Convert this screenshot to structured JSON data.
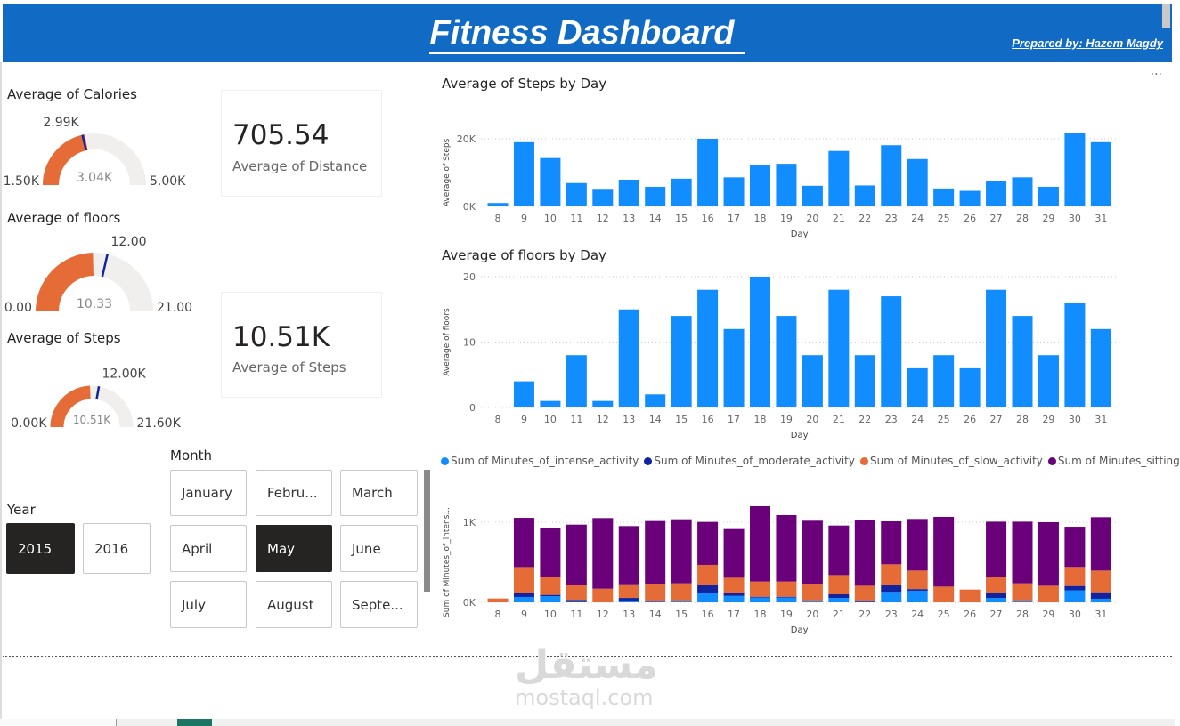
{
  "header": {
    "title": "Fitness Dashboard",
    "author": "Prepared by: Hazem Magdy",
    "bg_color": "#116ac4"
  },
  "gauges": [
    {
      "title": "Average of Calories",
      "min": 1.5,
      "max": 5.0,
      "value": 3.04,
      "target": 2.99,
      "min_label": "1.50K",
      "max_label": "5.00K",
      "value_label": "3.04K",
      "target_label": "2.99K"
    },
    {
      "title": "Average of floors",
      "min": 0,
      "max": 21,
      "value": 10.33,
      "target": 12,
      "min_label": "0.00",
      "max_label": "21.00",
      "value_label": "10.33",
      "target_label": "12.00"
    },
    {
      "title": "Average of Steps",
      "min": 0,
      "max": 21.6,
      "value": 10.51,
      "target": 12,
      "min_label": "0.00K",
      "max_label": "21.60K",
      "value_label": "10.51K",
      "target_label": "12.00K"
    }
  ],
  "gauge_colors": {
    "fill": "#e66c37",
    "track": "#f0efee",
    "target": "#12239e"
  },
  "cards": [
    {
      "value": "705.54",
      "caption": "Average of Distance"
    },
    {
      "value": "10.51K",
      "caption": "Average of Steps"
    }
  ],
  "year_slicer": {
    "title": "Year",
    "options": [
      "2015",
      "2016"
    ],
    "selected": "2015"
  },
  "month_slicer": {
    "title": "Month",
    "options": [
      "January",
      "Febru...",
      "March",
      "April",
      "May",
      "June",
      "July",
      "August",
      "Septe..."
    ],
    "selected": "May"
  },
  "more_options": "...",
  "watermark": {
    "arabic": "مستقل",
    "latin": "mostaql.com"
  },
  "chart_data": [
    {
      "type": "bar",
      "title": "Average of Steps by Day",
      "xlabel": "Day",
      "ylabel": "Average of Steps",
      "color": "#118dff",
      "categories": [
        "8",
        "9",
        "10",
        "11",
        "12",
        "13",
        "14",
        "15",
        "16",
        "17",
        "18",
        "19",
        "20",
        "21",
        "22",
        "23",
        "24",
        "25",
        "26",
        "27",
        "28",
        "29",
        "30",
        "31"
      ],
      "values": [
        1000,
        19000,
        14300,
        6900,
        5200,
        7900,
        5800,
        8200,
        20000,
        8600,
        12100,
        12600,
        6100,
        16400,
        6200,
        18100,
        14000,
        5300,
        4600,
        7600,
        8600,
        5800,
        21600,
        19000
      ],
      "yticks": [
        {
          "v": 0,
          "label": "0K"
        },
        {
          "v": 20000,
          "label": "20K"
        }
      ],
      "ylim": [
        0,
        22000
      ],
      "grid": true
    },
    {
      "type": "bar",
      "title": "Average of floors by Day",
      "xlabel": "Day",
      "ylabel": "Average of floors",
      "color": "#118dff",
      "categories": [
        "8",
        "9",
        "10",
        "11",
        "12",
        "13",
        "14",
        "15",
        "16",
        "17",
        "18",
        "19",
        "20",
        "21",
        "22",
        "23",
        "24",
        "25",
        "26",
        "27",
        "28",
        "29",
        "30",
        "31"
      ],
      "values": [
        0,
        4,
        1,
        8,
        1,
        15,
        2,
        14,
        18,
        12,
        20,
        14,
        8,
        18,
        8,
        17,
        6,
        8,
        6,
        18,
        14,
        8,
        16,
        12
      ],
      "yticks": [
        {
          "v": 0,
          "label": "0"
        },
        {
          "v": 10,
          "label": "10"
        },
        {
          "v": 20,
          "label": "20"
        }
      ],
      "ylim": [
        0,
        20
      ],
      "grid": true
    },
    {
      "type": "bar",
      "stacked": true,
      "title": "",
      "xlabel": "Day",
      "ylabel": "Sum of Minutes_of_intens...",
      "categories": [
        "8",
        "9",
        "10",
        "11",
        "12",
        "13",
        "14",
        "15",
        "16",
        "17",
        "18",
        "19",
        "20",
        "21",
        "22",
        "23",
        "24",
        "25",
        "26",
        "27",
        "28",
        "29",
        "30",
        "31"
      ],
      "series": [
        {
          "name": "Sum of Minutes_of_intense_activity",
          "color": "#118dff",
          "values": [
            0,
            67,
            78,
            5,
            0,
            15,
            5,
            10,
            119,
            80,
            60,
            60,
            10,
            55,
            5,
            130,
            145,
            0,
            0,
            55,
            10,
            0,
            150,
            45
          ]
        },
        {
          "name": "Sum of Minutes_of_moderate_activity",
          "color": "#12239e",
          "values": [
            0,
            55,
            15,
            25,
            0,
            40,
            5,
            5,
            100,
            35,
            10,
            10,
            10,
            45,
            10,
            81,
            20,
            0,
            0,
            60,
            10,
            0,
            54,
            81
          ]
        },
        {
          "name": "Sum of Minutes_of_slow_activity",
          "color": "#e66c37",
          "values": [
            48,
            318,
            225,
            188,
            170,
            170,
            223,
            222,
            248,
            192,
            189,
            189,
            213,
            240,
            192,
            263,
            231,
            196,
            159,
            196,
            217,
            207,
            237,
            270
          ]
        },
        {
          "name": "Sum of Minutes_sitting",
          "color": "#6b007b",
          "values": [
            0,
            615,
            604,
            752,
            882,
            727,
            782,
            800,
            537,
            608,
            941,
            830,
            786,
            619,
            826,
            537,
            645,
            871,
            0,
            696,
            770,
            793,
            503,
            667
          ]
        }
      ],
      "yticks": [
        {
          "v": 0,
          "label": "0K"
        },
        {
          "v": 1000,
          "label": "1K"
        }
      ],
      "ylim": [
        0,
        1220
      ],
      "grid": true,
      "legend": "top"
    }
  ]
}
